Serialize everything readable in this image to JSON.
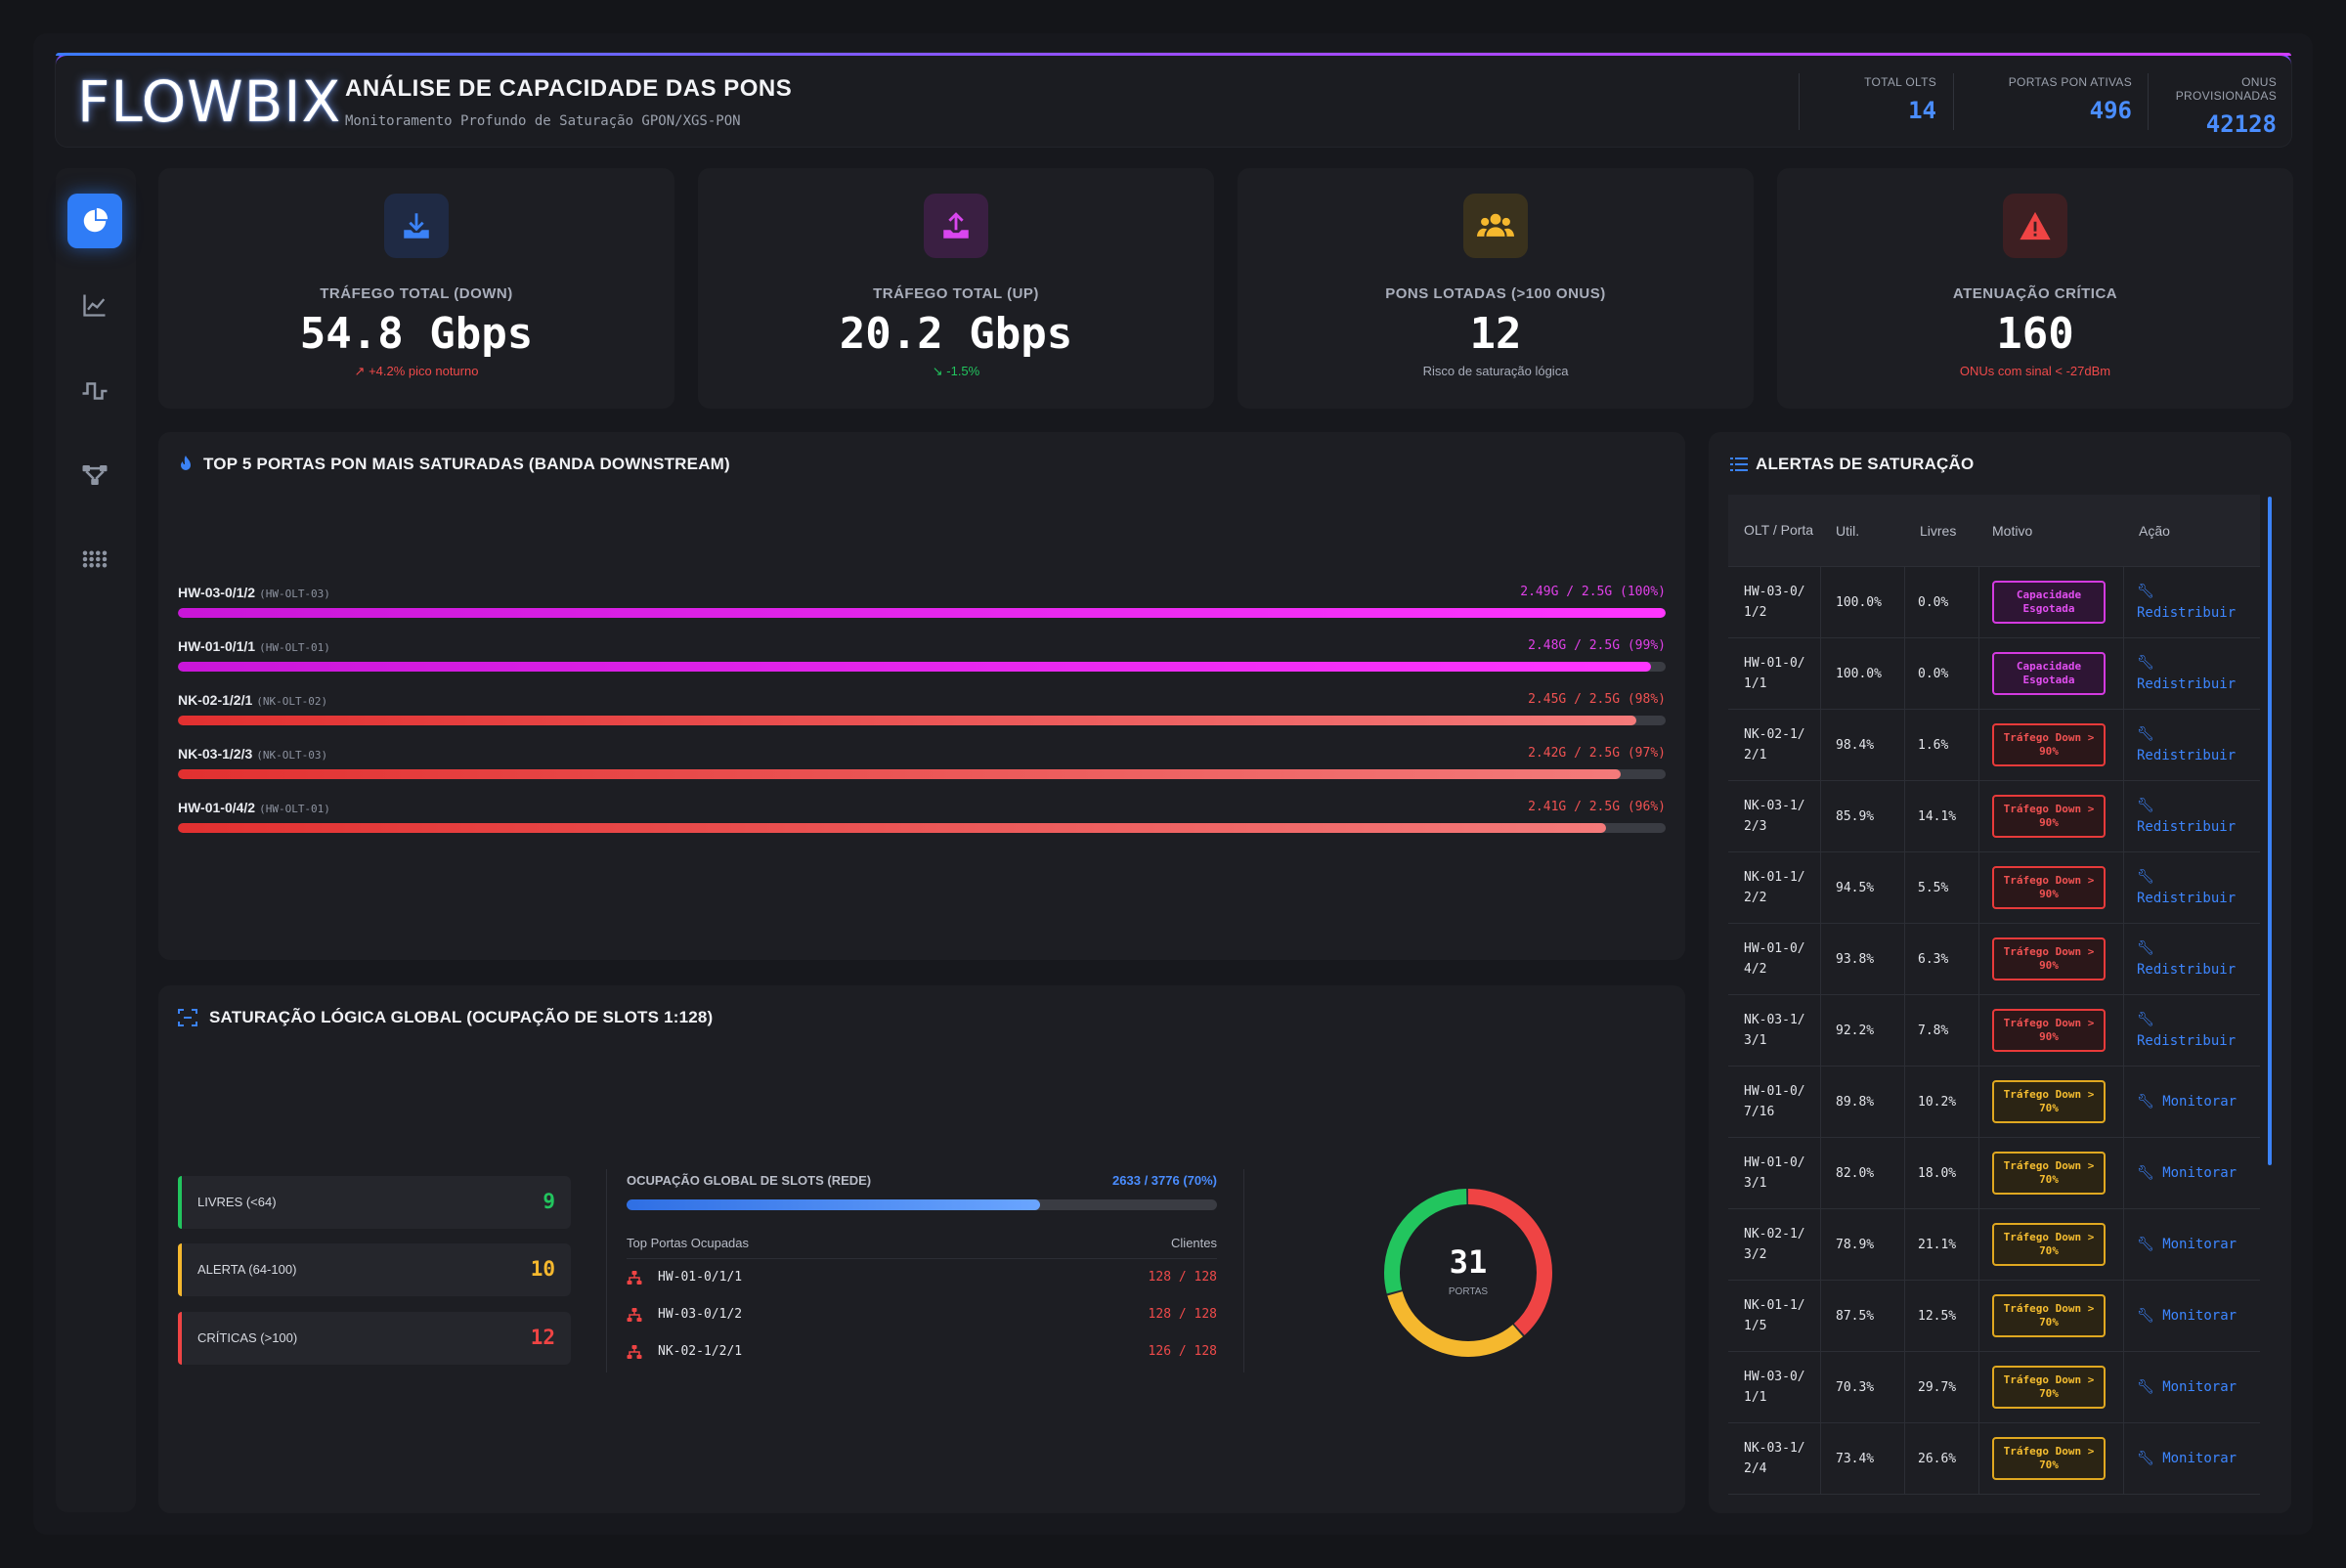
{
  "header": {
    "logo": "FLOWBIX",
    "title": "ANÁLISE DE CAPACIDADE DAS PONS",
    "subtitle": "Monitoramento Profundo de Saturação GPON/XGS-PON",
    "stats": [
      {
        "label": "TOTAL OLTS",
        "value": "14"
      },
      {
        "label": "PORTAS PON ATIVAS",
        "value": "496"
      },
      {
        "label": "ONUS PROVISIONADAS",
        "value": "42128"
      }
    ]
  },
  "sidebar": {
    "items": [
      {
        "icon": "pie-chart-icon",
        "active": true
      },
      {
        "icon": "line-chart-icon",
        "active": false
      },
      {
        "icon": "pulse-icon",
        "active": false
      },
      {
        "icon": "topology-icon",
        "active": false
      },
      {
        "icon": "grid-icon",
        "active": false
      }
    ]
  },
  "kpis": [
    {
      "label": "TRÁFEGO TOTAL (DOWN)",
      "value": "54.8 Gbps",
      "sub": "+4.2% pico noturno",
      "sub_color": "#ef4a4a",
      "icon": "download-icon",
      "accent": "#3b82f6"
    },
    {
      "label": "TRÁFEGO TOTAL (UP)",
      "value": "20.2 Gbps",
      "sub": "-1.5%",
      "sub_color": "#22c55e",
      "icon": "upload-icon",
      "accent": "#d946ef"
    },
    {
      "label": "PONS LOTADAS (>100 ONUS)",
      "value": "12",
      "sub": "Risco de saturação lógica",
      "sub_color": "#a9aebb",
      "icon": "users-icon",
      "accent": "#f5b82e"
    },
    {
      "label": "ATENUAÇÃO CRÍTICA",
      "value": "160",
      "sub": "ONUs com sinal < -27dBm",
      "sub_color": "#ef4a4a",
      "icon": "warning-icon",
      "accent": "#ef4444"
    }
  ],
  "top5": {
    "title": "TOP 5 PORTAS PON MAIS SATURADAS (BANDA DOWNSTREAM)",
    "rows": [
      {
        "port": "HW-03-0/1/2",
        "olt": "(HW-OLT-03)",
        "usage": "2.49G / 2.5G (100%)",
        "pct": 100,
        "color": "magenta"
      },
      {
        "port": "HW-01-0/1/1",
        "olt": "(HW-OLT-01)",
        "usage": "2.48G / 2.5G (99%)",
        "pct": 99,
        "color": "magenta"
      },
      {
        "port": "NK-02-1/2/1",
        "olt": "(NK-OLT-02)",
        "usage": "2.45G / 2.5G (98%)",
        "pct": 98,
        "color": "red"
      },
      {
        "port": "NK-03-1/2/3",
        "olt": "(NK-OLT-03)",
        "usage": "2.42G / 2.5G (97%)",
        "pct": 97,
        "color": "red"
      },
      {
        "port": "HW-01-0/4/2",
        "olt": "(HW-OLT-01)",
        "usage": "2.41G / 2.5G (96%)",
        "pct": 96,
        "color": "red"
      }
    ]
  },
  "saturation": {
    "title": "SATURAÇÃO LÓGICA GLOBAL (OCUPAÇÃO DE SLOTS 1:128)",
    "levels": [
      {
        "label": "LIVRES (<64)",
        "count": "9",
        "color": "#22c55e"
      },
      {
        "label": "ALERTA (64-100)",
        "count": "10",
        "color": "#f5b82e"
      },
      {
        "label": "CRÍTICAS (>100)",
        "count": "12",
        "color": "#ef4444"
      }
    ],
    "occupancy_label": "OCUPAÇÃO GLOBAL DE SLOTS (REDE)",
    "occupancy_value": "2633 / 3776 (70%)",
    "occupancy_pct": 70,
    "top_header": "Top Portas Ocupadas",
    "clients_header": "Clientes",
    "top_ports": [
      {
        "port": "HW-01-0/1/1",
        "clients": "128 / 128"
      },
      {
        "port": "HW-03-0/1/2",
        "clients": "128 / 128"
      },
      {
        "port": "NK-02-1/2/1",
        "clients": "126 / 128"
      }
    ],
    "donut_total": "31",
    "donut_label": "PORTAS"
  },
  "alerts": {
    "title": "ALERTAS DE SATURAÇÃO",
    "columns": [
      "OLT / Porta",
      "Util.",
      "Livres",
      "Motivo",
      "Ação"
    ],
    "rows": [
      {
        "port": "HW-03-0/1/2",
        "util": "100.0%",
        "free": "0.0%",
        "reason": "Capacidade Esgotada",
        "level": "magenta",
        "action": "Redistribuir"
      },
      {
        "port": "HW-01-0/1/1",
        "util": "100.0%",
        "free": "0.0%",
        "reason": "Capacidade Esgotada",
        "level": "magenta",
        "action": "Redistribuir"
      },
      {
        "port": "NK-02-1/2/1",
        "util": "98.4%",
        "free": "1.6%",
        "reason": "Tráfego Down > 90%",
        "level": "red",
        "action": "Redistribuir"
      },
      {
        "port": "NK-03-1/2/3",
        "util": "85.9%",
        "free": "14.1%",
        "reason": "Tráfego Down > 90%",
        "level": "red",
        "action": "Redistribuir"
      },
      {
        "port": "NK-01-1/2/2",
        "util": "94.5%",
        "free": "5.5%",
        "reason": "Tráfego Down > 90%",
        "level": "red",
        "action": "Redistribuir"
      },
      {
        "port": "HW-01-0/4/2",
        "util": "93.8%",
        "free": "6.3%",
        "reason": "Tráfego Down > 90%",
        "level": "red",
        "action": "Redistribuir"
      },
      {
        "port": "NK-03-1/3/1",
        "util": "92.2%",
        "free": "7.8%",
        "reason": "Tráfego Down > 90%",
        "level": "red",
        "action": "Redistribuir"
      },
      {
        "port": "HW-01-0/7/16",
        "util": "89.8%",
        "free": "10.2%",
        "reason": "Tráfego Down > 70%",
        "level": "yellow",
        "action": "Monitorar"
      },
      {
        "port": "HW-01-0/3/1",
        "util": "82.0%",
        "free": "18.0%",
        "reason": "Tráfego Down > 70%",
        "level": "yellow",
        "action": "Monitorar"
      },
      {
        "port": "NK-02-1/3/2",
        "util": "78.9%",
        "free": "21.1%",
        "reason": "Tráfego Down > 70%",
        "level": "yellow",
        "action": "Monitorar"
      },
      {
        "port": "NK-01-1/1/5",
        "util": "87.5%",
        "free": "12.5%",
        "reason": "Tráfego Down > 70%",
        "level": "yellow",
        "action": "Monitorar"
      },
      {
        "port": "HW-03-0/1/1",
        "util": "70.3%",
        "free": "29.7%",
        "reason": "Tráfego Down > 70%",
        "level": "yellow",
        "action": "Monitorar"
      },
      {
        "port": "NK-03-1/2/4",
        "util": "73.4%",
        "free": "26.6%",
        "reason": "Tráfego Down > 70%",
        "level": "yellow",
        "action": "Monitorar"
      }
    ]
  },
  "chart_data": {
    "type": "pie",
    "categories": [
      "LIVRES (<64)",
      "ALERTA (64-100)",
      "CRÍTICAS (>100)"
    ],
    "values": [
      9,
      10,
      12
    ],
    "colors": [
      "#22c55e",
      "#f5b82e",
      "#ef4444"
    ]
  }
}
